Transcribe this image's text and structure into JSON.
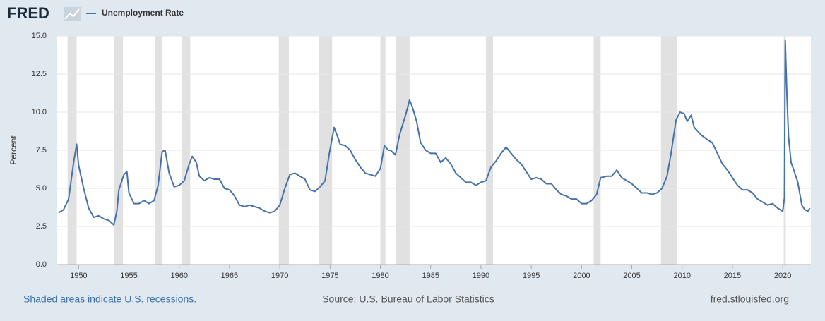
{
  "logo": "FRED",
  "chart_data": {
    "type": "line",
    "y_label": "Percent",
    "x": [
      1948.0,
      1948.5,
      1949.0,
      1949.5,
      1949.8,
      1950.0,
      1950.5,
      1951.0,
      1951.5,
      1952.0,
      1952.5,
      1953.0,
      1953.5,
      1953.8,
      1954.0,
      1954.5,
      1954.8,
      1955.0,
      1955.5,
      1956.0,
      1956.5,
      1957.0,
      1957.5,
      1957.9,
      1958.3,
      1958.6,
      1959.0,
      1959.5,
      1960.0,
      1960.5,
      1961.0,
      1961.3,
      1961.7,
      1962.0,
      1962.5,
      1963.0,
      1963.5,
      1964.0,
      1964.5,
      1965.0,
      1965.5,
      1966.0,
      1966.5,
      1967.0,
      1967.5,
      1968.0,
      1968.5,
      1969.0,
      1969.5,
      1970.0,
      1970.5,
      1971.0,
      1971.5,
      1972.0,
      1972.5,
      1973.0,
      1973.5,
      1974.0,
      1974.5,
      1974.9,
      1975.4,
      1975.8,
      1976.0,
      1976.5,
      1977.0,
      1977.5,
      1978.0,
      1978.5,
      1979.0,
      1979.5,
      1980.0,
      1980.4,
      1980.8,
      1981.0,
      1981.5,
      1981.9,
      1982.5,
      1982.9,
      1983.2,
      1983.6,
      1984.0,
      1984.5,
      1985.0,
      1985.5,
      1986.0,
      1986.5,
      1987.0,
      1987.5,
      1988.0,
      1988.5,
      1989.0,
      1989.5,
      1990.0,
      1990.5,
      1991.0,
      1991.5,
      1992.0,
      1992.5,
      1993.0,
      1993.5,
      1994.0,
      1994.5,
      1995.0,
      1995.5,
      1996.0,
      1996.5,
      1997.0,
      1997.5,
      1998.0,
      1998.5,
      1999.0,
      1999.5,
      2000.0,
      2000.5,
      2001.0,
      2001.5,
      2001.9,
      2002.5,
      2003.0,
      2003.5,
      2004.0,
      2004.5,
      2005.0,
      2005.5,
      2006.0,
      2006.5,
      2007.0,
      2007.5,
      2008.0,
      2008.5,
      2008.9,
      2009.4,
      2009.8,
      2010.2,
      2010.5,
      2010.9,
      2011.2,
      2011.9,
      2012.5,
      2013.0,
      2013.5,
      2014.0,
      2014.5,
      2015.0,
      2015.5,
      2016.0,
      2016.5,
      2017.0,
      2017.5,
      2018.0,
      2018.5,
      2019.0,
      2019.5,
      2020.0,
      2020.17,
      2020.25,
      2020.42,
      2020.58,
      2020.83,
      2021.0,
      2021.5,
      2021.9,
      2022.2,
      2022.5,
      2022.7
    ],
    "series": [
      {
        "name": "Unemployment Rate",
        "color": "#4572a7",
        "values": [
          3.4,
          3.6,
          4.3,
          6.7,
          7.9,
          6.5,
          5.0,
          3.7,
          3.1,
          3.2,
          3.0,
          2.9,
          2.6,
          3.5,
          4.9,
          5.9,
          6.1,
          4.7,
          4.0,
          4.0,
          4.2,
          4.0,
          4.2,
          5.2,
          7.4,
          7.5,
          6.0,
          5.1,
          5.2,
          5.5,
          6.6,
          7.1,
          6.7,
          5.8,
          5.5,
          5.7,
          5.6,
          5.6,
          5.0,
          4.9,
          4.5,
          3.9,
          3.8,
          3.9,
          3.8,
          3.7,
          3.5,
          3.4,
          3.5,
          3.9,
          5.0,
          5.9,
          6.0,
          5.8,
          5.6,
          4.9,
          4.8,
          5.1,
          5.5,
          7.2,
          9.0,
          8.3,
          7.9,
          7.8,
          7.5,
          6.9,
          6.4,
          6.0,
          5.9,
          5.8,
          6.3,
          7.8,
          7.5,
          7.5,
          7.2,
          8.5,
          9.8,
          10.8,
          10.3,
          9.4,
          8.0,
          7.5,
          7.3,
          7.3,
          6.7,
          7.0,
          6.6,
          6.0,
          5.7,
          5.4,
          5.4,
          5.2,
          5.4,
          5.5,
          6.4,
          6.8,
          7.3,
          7.7,
          7.3,
          6.9,
          6.6,
          6.1,
          5.6,
          5.7,
          5.6,
          5.3,
          5.3,
          4.9,
          4.6,
          4.5,
          4.3,
          4.3,
          4.0,
          4.0,
          4.2,
          4.6,
          5.7,
          5.8,
          5.8,
          6.2,
          5.7,
          5.5,
          5.3,
          5.0,
          4.7,
          4.7,
          4.6,
          4.7,
          5.0,
          5.8,
          7.3,
          9.5,
          10.0,
          9.9,
          9.4,
          9.8,
          9.0,
          8.5,
          8.2,
          8.0,
          7.3,
          6.6,
          6.2,
          5.7,
          5.2,
          4.9,
          4.9,
          4.7,
          4.3,
          4.1,
          3.9,
          4.0,
          3.7,
          3.5,
          4.4,
          14.7,
          11.1,
          8.4,
          6.7,
          6.4,
          5.4,
          3.9,
          3.6,
          3.5,
          3.7
        ]
      }
    ],
    "recessions": [
      [
        1948.9,
        1949.8
      ],
      [
        1953.5,
        1954.4
      ],
      [
        1957.6,
        1958.3
      ],
      [
        1960.3,
        1961.1
      ],
      [
        1969.9,
        1970.9
      ],
      [
        1973.9,
        1975.2
      ],
      [
        1980.0,
        1980.5
      ],
      [
        1981.5,
        1982.9
      ],
      [
        1990.5,
        1991.2
      ],
      [
        2001.2,
        2001.9
      ],
      [
        2007.9,
        2009.5
      ],
      [
        2020.1,
        2020.3
      ]
    ],
    "recession_color": "#e1e1e1",
    "xlim": [
      1947.8,
      2022.8
    ],
    "xticks": [
      1950,
      1955,
      1960,
      1965,
      1970,
      1975,
      1980,
      1985,
      1990,
      1995,
      2000,
      2005,
      2010,
      2015,
      2020
    ],
    "ylim": [
      0,
      15
    ],
    "yticks": [
      {
        "value": 0,
        "label": "0.0"
      },
      2.5,
      {
        "value": 5,
        "label": "5.0"
      },
      7.5,
      {
        "value": 10,
        "label": "10.0"
      },
      12.5,
      {
        "value": 15,
        "label": "15.0"
      }
    ],
    "grid": true
  },
  "footer": {
    "note": "Shaded areas indicate U.S. recessions.",
    "source": "Source: U.S. Bureau of Labor Statistics",
    "site": "fred.stlouisfed.org"
  }
}
